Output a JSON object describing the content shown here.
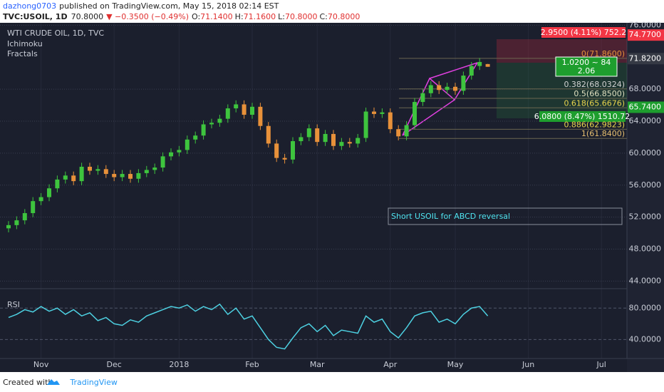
{
  "header": {
    "author": "dazhong0703",
    "published": "published on TradingView.com, May 15, 2018 02:14 EST",
    "symbol": "TVC:USOIL, 1D",
    "price": "70.8000",
    "change": "▼ −0.3500 (−0.49%)",
    "ohlc": [
      "O:",
      "71.1400",
      "H:",
      "71.1600",
      "L:",
      "70.8000",
      "C:",
      "70.8000"
    ]
  },
  "footer": {
    "created": "Created with",
    "brand": "TradingView"
  },
  "chart_data": {
    "type": "candlestick",
    "title": "WTI CRUDE OIL, 1D, TVC",
    "indicators": [
      "Ichimoku",
      "Fractals"
    ],
    "categories": [
      null,
      null,
      null,
      null,
      "Nov",
      null,
      null,
      null,
      null,
      null,
      null,
      null,
      null,
      "Dec",
      null,
      null,
      null,
      null,
      null,
      null,
      null,
      "2018",
      null,
      null,
      null,
      null,
      null,
      null,
      null,
      null,
      "Feb",
      null,
      null,
      null,
      null,
      null,
      null,
      null,
      "Mar",
      null,
      null,
      null,
      null,
      null,
      null,
      null,
      null,
      "Apr",
      null,
      null,
      null,
      null,
      null,
      null,
      null,
      "May",
      null,
      null,
      null,
      null,
      null,
      null,
      null,
      null,
      "Jun",
      null,
      null,
      null,
      null,
      null,
      null,
      null,
      null,
      "Jul"
    ],
    "open": [
      50.6,
      51.0,
      51.6,
      52.5,
      54.0,
      54.5,
      55.6,
      56.7,
      57.2,
      56.5,
      58.3,
      57.8,
      58.0,
      57.4,
      57.0,
      57.4,
      56.8,
      57.5,
      57.9,
      58.2,
      59.6,
      60.1,
      60.4,
      61.7,
      62.2,
      63.6,
      63.8,
      64.3,
      65.6,
      66.1,
      64.8,
      65.8,
      63.4,
      61.2,
      59.4,
      59.2,
      61.5,
      62.0,
      63.1,
      61.4,
      62.4,
      60.9,
      61.4,
      61.2,
      61.9,
      65.2,
      64.9,
      65.1,
      63.0,
      62.1,
      63.5,
      66.4,
      67.5,
      68.5,
      67.9,
      68.3,
      67.8,
      69.7,
      70.9,
      71.14,
      null,
      null,
      null,
      null,
      null,
      null,
      null,
      null,
      null,
      null,
      null,
      null,
      null,
      null
    ],
    "high": [
      51.5,
      52.1,
      53.0,
      54.5,
      55.0,
      56.1,
      57.2,
      57.7,
      57.7,
      58.8,
      58.8,
      58.5,
      58.5,
      57.9,
      57.9,
      57.9,
      58.0,
      58.4,
      58.7,
      60.1,
      60.6,
      60.9,
      62.2,
      62.7,
      64.1,
      64.3,
      64.8,
      66.1,
      66.6,
      66.6,
      66.3,
      66.3,
      63.9,
      61.7,
      59.9,
      62.0,
      62.5,
      63.6,
      63.6,
      62.9,
      62.9,
      61.9,
      61.9,
      62.4,
      65.7,
      65.7,
      65.6,
      65.6,
      63.5,
      64.0,
      66.9,
      68.0,
      69.0,
      69.0,
      68.8,
      68.8,
      70.2,
      71.4,
      71.9,
      71.16,
      null,
      null,
      null,
      null,
      null,
      null,
      null,
      null,
      null,
      null,
      null,
      null,
      null,
      null
    ],
    "low": [
      50.1,
      50.5,
      51.1,
      52.0,
      53.5,
      54.0,
      55.1,
      56.2,
      56.0,
      56.0,
      57.3,
      57.3,
      56.9,
      56.5,
      56.5,
      56.3,
      56.3,
      57.0,
      57.4,
      57.7,
      59.1,
      59.6,
      59.9,
      61.2,
      61.7,
      63.1,
      63.3,
      63.8,
      65.1,
      64.3,
      64.3,
      62.9,
      60.7,
      58.9,
      58.7,
      58.7,
      61.0,
      61.5,
      60.9,
      60.9,
      60.4,
      60.4,
      60.7,
      60.7,
      61.4,
      64.4,
      64.4,
      62.5,
      61.6,
      61.6,
      63.0,
      65.9,
      67.0,
      67.4,
      67.4,
      67.3,
      67.3,
      69.2,
      70.4,
      70.8,
      null,
      null,
      null,
      null,
      null,
      null,
      null,
      null,
      null,
      null,
      null,
      null,
      null,
      null
    ],
    "close": [
      51.0,
      51.6,
      52.5,
      54.0,
      54.5,
      55.6,
      56.7,
      57.2,
      56.5,
      58.3,
      57.8,
      58.0,
      57.4,
      57.0,
      57.4,
      56.8,
      57.5,
      57.9,
      58.2,
      59.6,
      60.1,
      60.4,
      61.7,
      62.2,
      63.6,
      63.8,
      64.3,
      65.6,
      66.1,
      64.8,
      65.8,
      63.4,
      61.2,
      59.4,
      59.2,
      61.5,
      62.0,
      63.1,
      61.4,
      62.4,
      60.9,
      61.4,
      61.2,
      61.9,
      65.2,
      64.9,
      65.1,
      63.0,
      62.1,
      63.5,
      66.4,
      67.5,
      68.5,
      67.9,
      68.3,
      67.8,
      69.7,
      70.9,
      71.4,
      70.8,
      null,
      null,
      null,
      null,
      null,
      null,
      null,
      null,
      null,
      null,
      null,
      null,
      null,
      null
    ],
    "up_color": "#3ec43e",
    "down_color": "#e8913a",
    "ylim": [
      43.5,
      76.3
    ],
    "yticks": [
      {
        "value": 44,
        "label": "44.0000"
      },
      {
        "value": 48,
        "label": "48.0000"
      },
      {
        "value": 52,
        "label": "52.0000"
      },
      {
        "value": 56,
        "label": "56.0000"
      },
      {
        "value": 60,
        "label": "60.0000"
      },
      {
        "value": 64,
        "label": "64.0000"
      },
      {
        "value": 68,
        "label": "68.0000"
      },
      {
        "value": 76,
        "label": "76.0000"
      }
    ],
    "grid": true,
    "price_markers": [
      {
        "value": 74.77,
        "label": "74.7700",
        "color": "#f23645"
      },
      {
        "value": 71.82,
        "label": "71.8200",
        "color": "#363a45"
      },
      {
        "value": 65.74,
        "label": "65.7400",
        "color": "#1e9e2e"
      }
    ],
    "fib_levels": [
      {
        "value": 71.86,
        "label": "0(71.8600)",
        "color": "#e8913a"
      },
      {
        "value": 68.0324,
        "label": "0.382(68.0324)",
        "color": "#d0d0d0"
      },
      {
        "value": 66.85,
        "label": "0.5(66.8500)",
        "color": "#e0e0c0"
      },
      {
        "value": 65.6676,
        "label": "0.618(65.6676)",
        "color": "#e8d44d"
      },
      {
        "value": 62.9823,
        "label": "0.886(62.9823)",
        "color": "#e8d44d"
      },
      {
        "value": 61.84,
        "label": "1(61.8400)",
        "color": "#e8c070"
      }
    ],
    "annotation": "Short USOIL for ABCD reversal",
    "position": {
      "stop": "2.9500 (4.11%) 752.2",
      "ratio": [
        "1.0200 ~ 84",
        "2.06"
      ],
      "target": "6.0800 (8.47%) 1510.72"
    },
    "rsi": {
      "title": "RSI",
      "color": "#4dd0e1",
      "ylim": [
        14,
        102
      ],
      "yticks": [
        {
          "value": 40,
          "label": "40.0000"
        },
        {
          "value": 80,
          "label": "80.0000"
        }
      ],
      "values": [
        68,
        72,
        78,
        75,
        82,
        76,
        80,
        72,
        78,
        70,
        74,
        64,
        68,
        60,
        58,
        65,
        62,
        70,
        74,
        78,
        82,
        80,
        84,
        76,
        82,
        78,
        85,
        72,
        80,
        66,
        70,
        55,
        40,
        30,
        28,
        42,
        55,
        60,
        50,
        58,
        45,
        52,
        50,
        48,
        70,
        62,
        66,
        50,
        42,
        55,
        70,
        74,
        76,
        62,
        66,
        60,
        72,
        80,
        82,
        70,
        null,
        null,
        null,
        null,
        null,
        null,
        null,
        null,
        null,
        null,
        null,
        null,
        null,
        null
      ]
    }
  }
}
